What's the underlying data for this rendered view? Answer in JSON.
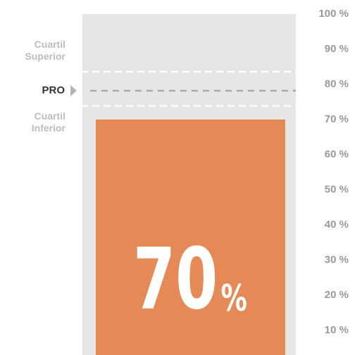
{
  "chart_data": {
    "type": "bar",
    "values": [
      70
    ],
    "value_labels": [
      "70%"
    ],
    "color": "#e58a57",
    "background": "#e6e6e7",
    "ylim": [
      3,
      100
    ],
    "yticks": [
      {
        "value": 10,
        "label": "10 %"
      },
      {
        "value": 20,
        "label": "20 %"
      },
      {
        "value": 30,
        "label": "30 %"
      },
      {
        "value": 40,
        "label": "40 %"
      },
      {
        "value": 50,
        "label": "50 %"
      },
      {
        "value": 60,
        "label": "60 %"
      },
      {
        "value": 70,
        "label": "70 %"
      },
      {
        "value": 80,
        "label": "80 %"
      },
      {
        "value": 90,
        "label": "90 %"
      },
      {
        "value": 100,
        "label": "100 %"
      }
    ],
    "reference_lines": [
      {
        "label": "Cuartil Superior",
        "value": 83.6,
        "color": "#ffffff"
      },
      {
        "label": "PRO",
        "value": 78.2,
        "color": "#a8a8a8"
      },
      {
        "label": "Cuartil Inferior",
        "value": 73.8,
        "color": "#ffffff"
      }
    ]
  }
}
